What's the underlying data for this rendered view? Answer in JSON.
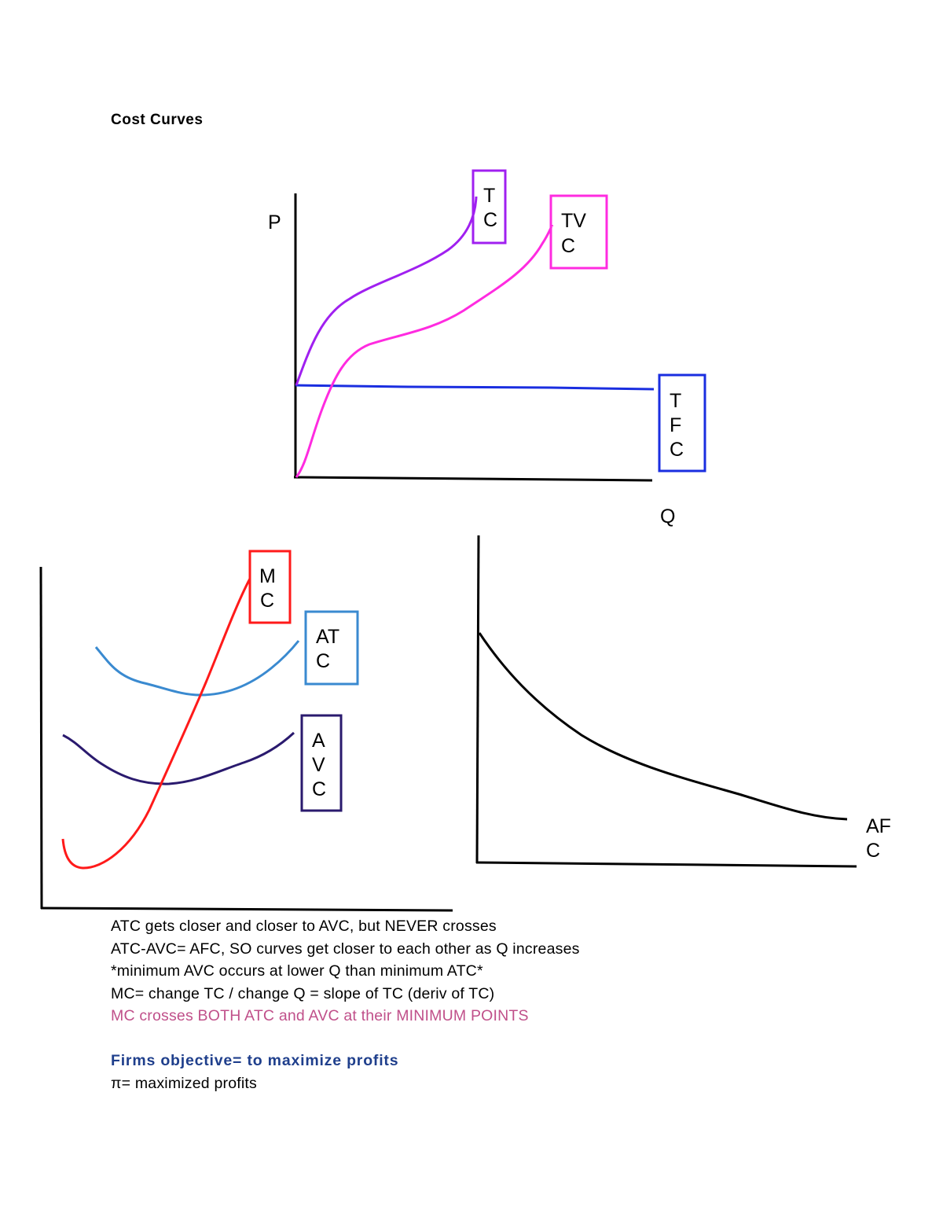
{
  "title": "Cost Curves",
  "colors": {
    "tc": "#a020f0",
    "tvc": "#ff2be0",
    "tfc": "#1a2ee0",
    "mc": "#ff1a1a",
    "atc": "#3a8ad0",
    "avc": "#2a1a6e",
    "afc": "#000000",
    "highlight_text": "#c0508a",
    "heading_text": "#1f3f8c"
  },
  "top_graph": {
    "y_axis_label": "P",
    "x_axis_label": "Q",
    "tc_box": [
      "T",
      "C"
    ],
    "tvc_box": [
      "TV",
      "C"
    ],
    "tfc_box": [
      "T",
      "F",
      "C"
    ]
  },
  "bottom_left_graph": {
    "mc_box": [
      "M",
      "C"
    ],
    "atc_box": [
      "AT",
      "C"
    ],
    "avc_box": [
      "A",
      "V",
      "C"
    ]
  },
  "bottom_right_graph": {
    "afc_label": [
      "AF",
      "C"
    ]
  },
  "notes": [
    "ATC gets closer and closer to AVC, but NEVER crosses",
    "ATC-AVC= AFC, SO curves get closer to each other as Q increases",
    "*minimum AVC occurs at lower Q than minimum ATC*",
    "MC= change TC / change Q = slope of TC (deriv of TC)",
    "MC crosses BOTH ATC and AVC at their MINIMUM POINTS"
  ],
  "objective_heading": "Firms objective= to maximize profits",
  "objective_text": "π= maximized profits"
}
